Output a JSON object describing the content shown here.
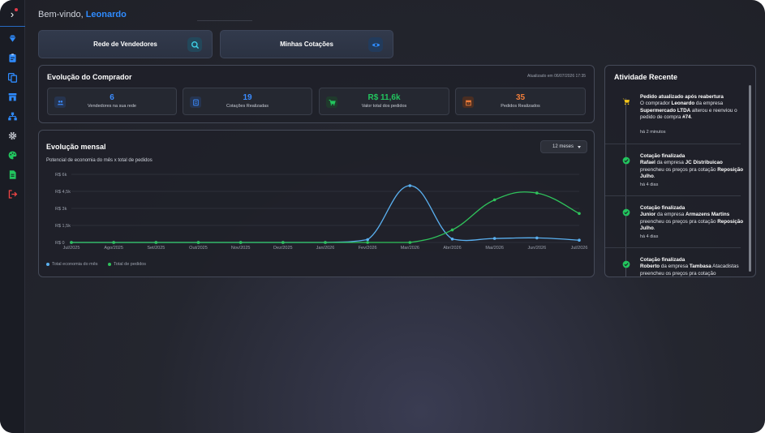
{
  "welcome": {
    "prefix": "Bem-vindo,",
    "name": "Leonardo"
  },
  "sidebar": {
    "items": [
      {
        "icon": "diamond-icon",
        "color": "#2f8cff"
      },
      {
        "icon": "clipboard-icon",
        "color": "#2f8cff"
      },
      {
        "icon": "copy-icon",
        "color": "#2f8cff"
      },
      {
        "icon": "store-icon",
        "color": "#2f8cff"
      },
      {
        "icon": "network-icon",
        "color": "#2f8cff"
      },
      {
        "icon": "gear-icon",
        "color": "#c9ccd4"
      },
      {
        "icon": "palette-icon",
        "color": "#22c55e"
      },
      {
        "icon": "file-icon",
        "color": "#22c55e"
      },
      {
        "icon": "logout-icon",
        "color": "#ef4444"
      }
    ]
  },
  "quick": {
    "vendors_label": "Rede de Vendedores",
    "quotes_label": "Minhas Cotações"
  },
  "buyer": {
    "title": "Evolução do Comprador",
    "updated": "Atualizado em 06/07/2026 17:35",
    "stats": [
      {
        "value": "6",
        "label": "Vendedores na sua rede",
        "color": "#3b8cff",
        "icon": "users-icon",
        "icon_bg": "#26344f"
      },
      {
        "value": "19",
        "label": "Cotações Realizadas",
        "color": "#3b8cff",
        "icon": "document-icon",
        "icon_bg": "#26344f"
      },
      {
        "value": "R$ 11,6k",
        "label": "Valor total dos pedidos",
        "color": "#22c55e",
        "icon": "cart-icon",
        "icon_bg": "#1f3a2c"
      },
      {
        "value": "35",
        "label": "Pedidos Realizados",
        "color": "#f07d3a",
        "icon": "box-icon",
        "icon_bg": "#4a2e22"
      }
    ]
  },
  "monthly": {
    "title": "Evolução mensal",
    "subtitle": "Potencial de economia do mês x total de pedidos",
    "period": "12 meses"
  },
  "chart_data": {
    "type": "line",
    "categories": [
      "Jul/2025",
      "Ago/2025",
      "Set/2025",
      "Out/2025",
      "Nov/2025",
      "Dez/2025",
      "Jan/2026",
      "Fev/2026",
      "Mar/2026",
      "Abr/2026",
      "Mai/2026",
      "Jun/2026",
      "Jul/2026"
    ],
    "y_ticks": [
      "R$ 0",
      "R$ 1,5k",
      "R$ 3k",
      "R$ 4,5k",
      "R$ 6k"
    ],
    "ylim": [
      0,
      6000
    ],
    "grid": true,
    "legend_position": "bottom-left",
    "series": [
      {
        "name": "Total economia do mês",
        "color": "#5ab0f0",
        "values": [
          0,
          0,
          0,
          0,
          0,
          0,
          0,
          250,
          5000,
          300,
          350,
          400,
          200
        ]
      },
      {
        "name": "Total de pedidos",
        "color": "#2fc25b",
        "values": [
          0,
          0,
          0,
          0,
          0,
          0,
          0,
          0,
          0,
          1100,
          3750,
          4350,
          2550
        ]
      }
    ]
  },
  "activity": {
    "title": "Atividade Recente",
    "items": [
      {
        "icon": "cart-icon",
        "icon_color": "#f5c518",
        "title": "Pedido atualizado após reabertura",
        "desc": "O comprador <b class=\"w\">Leonardo</b> da empresa <b class=\"w\">Supermercado LTDA</b> alterou e reenviou o pedido de compra <b class=\"w\">#74</b>.",
        "time": "há 2 minutos"
      },
      {
        "icon": "check-circle-icon",
        "icon_color": "#22c55e",
        "title": "Cotação finalizada",
        "desc": "<b class=\"w\">Rafael</b> da empresa <b class=\"w\">JC Distribuicao</b> preencheu os preços pra cotação <b class=\"w\">Reposição Julho</b>.",
        "time": "há 4 dias"
      },
      {
        "icon": "check-circle-icon",
        "icon_color": "#22c55e",
        "title": "Cotação finalizada",
        "desc": "<b class=\"w\">Junior</b> da empresa <b class=\"w\">Armazens Martins</b> preencheu os preços pra cotação <b class=\"w\">Reposição Julho</b>.",
        "time": "há 4 dias"
      },
      {
        "icon": "check-circle-icon",
        "icon_color": "#22c55e",
        "title": "Cotação finalizada",
        "desc": "<b class=\"w\">Roberto</b> da empresa <b class=\"w\">Tambasa</b> Atacadistas preencheu os preços pra cotação",
        "time": ""
      }
    ]
  }
}
